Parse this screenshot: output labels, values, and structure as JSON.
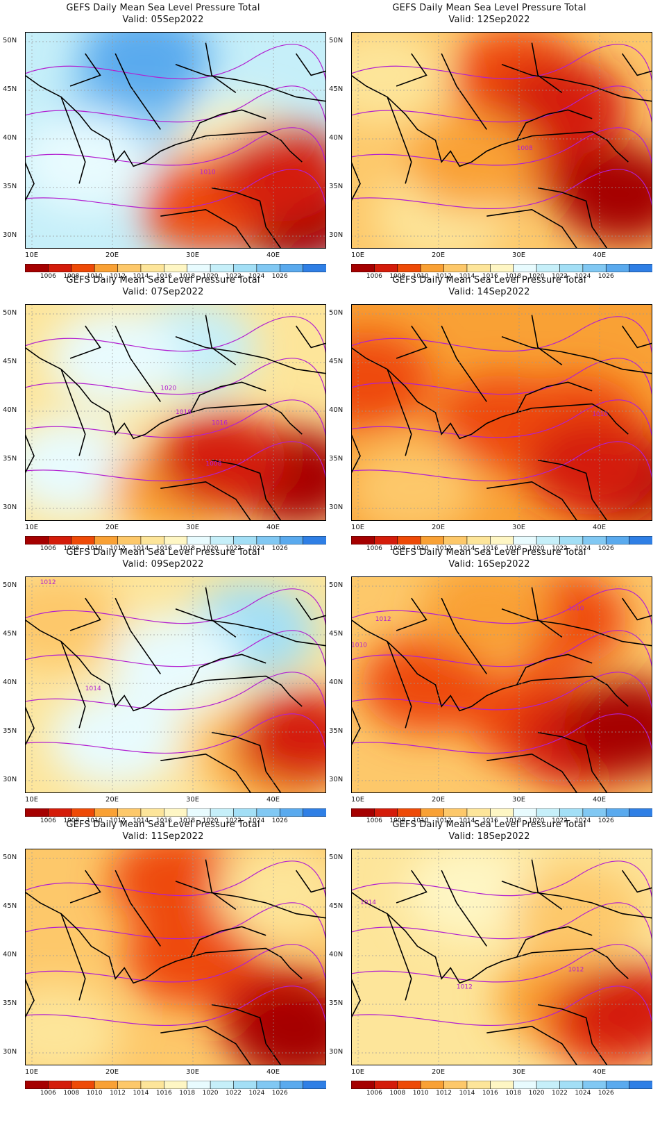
{
  "palette": {
    "colors": [
      "#a50000",
      "#d41c0a",
      "#ee4a07",
      "#f9a135",
      "#fdc86a",
      "#fde59a",
      "#fef6c4",
      "#e8fbfe",
      "#c6eff9",
      "#a3dff6",
      "#81c8f3",
      "#5aaaee",
      "#2f7fe5"
    ],
    "labels": [
      "1006",
      "1008",
      "1010",
      "1012",
      "1014",
      "1016",
      "1018",
      "1020",
      "1022",
      "1024",
      "1026"
    ],
    "contour_color": "#b21fd0"
  },
  "axes": {
    "lon_ticks": [
      "10E",
      "20E",
      "30E",
      "40E"
    ],
    "lat_ticks": [
      "50N",
      "45N",
      "40N",
      "35N",
      "30N"
    ]
  },
  "panels": [
    {
      "title": "GEFS Daily Mean Sea Level Pressure Total",
      "valid": "Valid: 05Sep2022",
      "bg": "#c6eff9",
      "labels": [
        {
          "text": "1010"
        }
      ],
      "fields": [
        [
          0.35,
          0.35,
          "#81c8f3"
        ],
        [
          0.4,
          0.12,
          "#5aaaee"
        ],
        [
          0.2,
          0.6,
          "#e8fbfe"
        ],
        [
          0.7,
          0.55,
          "#fef6c4"
        ],
        [
          0.65,
          0.75,
          "#f9a135"
        ],
        [
          0.9,
          0.85,
          "#a50000"
        ],
        [
          0.6,
          0.8,
          "#ee4a07"
        ],
        [
          0.85,
          0.65,
          "#d41c0a"
        ]
      ]
    },
    {
      "title": "GEFS Daily Mean Sea Level Pressure Total",
      "valid": "Valid: 12Sep2022",
      "bg": "#fdc86a",
      "labels": [
        {
          "text": "1008"
        }
      ],
      "fields": [
        [
          0.1,
          0.2,
          "#fde59a"
        ],
        [
          0.55,
          0.2,
          "#ee4a07"
        ],
        [
          0.7,
          0.35,
          "#d41c0a"
        ],
        [
          0.55,
          0.55,
          "#d41c0a"
        ],
        [
          0.9,
          0.75,
          "#a50000"
        ],
        [
          0.3,
          0.85,
          "#fde59a"
        ],
        [
          0.4,
          0.6,
          "#f9a135"
        ]
      ]
    },
    {
      "title": "GEFS Daily Mean Sea Level Pressure Total",
      "valid": "Valid: 07Sep2022",
      "bg": "#fde59a",
      "labels": [
        {
          "text": "1020"
        },
        {
          "text": "1018"
        },
        {
          "text": "1016"
        },
        {
          "text": "1008"
        }
      ],
      "fields": [
        [
          0.55,
          0.2,
          "#c6eff9"
        ],
        [
          0.3,
          0.25,
          "#e8fbfe"
        ],
        [
          0.15,
          0.75,
          "#e8fbfe"
        ],
        [
          0.5,
          0.85,
          "#f9a135"
        ],
        [
          0.7,
          0.75,
          "#ee4a07"
        ],
        [
          0.9,
          0.8,
          "#a50000"
        ],
        [
          0.65,
          0.72,
          "#d41c0a"
        ]
      ]
    },
    {
      "title": "GEFS Daily Mean Sea Level Pressure Total",
      "valid": "Valid: 14Sep2022",
      "bg": "#f9a135",
      "labels": [
        {
          "text": "1010"
        }
      ],
      "fields": [
        [
          0.05,
          0.35,
          "#ee4a07"
        ],
        [
          0.5,
          0.55,
          "#ee4a07"
        ],
        [
          0.75,
          0.55,
          "#ee4a07"
        ],
        [
          0.9,
          0.8,
          "#a50000"
        ],
        [
          0.8,
          0.75,
          "#d41c0a"
        ],
        [
          0.2,
          0.85,
          "#fdc86a"
        ]
      ]
    },
    {
      "title": "GEFS Daily Mean Sea Level Pressure Total",
      "valid": "Valid: 09Sep2022",
      "bg": "#fde59a",
      "labels": [
        {
          "text": "1012"
        },
        {
          "text": "1014"
        }
      ],
      "fields": [
        [
          0.75,
          0.25,
          "#a3dff6"
        ],
        [
          0.5,
          0.4,
          "#e8fbfe"
        ],
        [
          0.3,
          0.75,
          "#e8fbfe"
        ],
        [
          0.1,
          0.2,
          "#fdc86a"
        ],
        [
          0.75,
          0.8,
          "#fdc86a"
        ],
        [
          0.85,
          0.85,
          "#f9a135"
        ],
        [
          0.92,
          0.75,
          "#d41c0a"
        ]
      ]
    },
    {
      "title": "GEFS Daily Mean Sea Level Pressure Total",
      "valid": "Valid: 16Sep2022",
      "bg": "#fdc86a",
      "labels": [
        {
          "text": "1012"
        },
        {
          "text": "1010"
        },
        {
          "text": "1010"
        }
      ],
      "fields": [
        [
          0.25,
          0.5,
          "#ee4a07"
        ],
        [
          0.6,
          0.65,
          "#ee4a07"
        ],
        [
          0.75,
          0.75,
          "#d41c0a"
        ],
        [
          0.92,
          0.7,
          "#a50000"
        ],
        [
          0.7,
          0.2,
          "#ee4a07"
        ],
        [
          0.45,
          0.15,
          "#f9a135"
        ]
      ]
    },
    {
      "title": "GEFS Daily Mean Sea Level Pressure Total",
      "valid": "Valid: 11Sep2022",
      "bg": "#fdc86a",
      "labels": [],
      "fields": [
        [
          0.5,
          0.15,
          "#ee4a07"
        ],
        [
          0.55,
          0.5,
          "#ee4a07"
        ],
        [
          0.85,
          0.75,
          "#d41c0a"
        ],
        [
          0.9,
          0.85,
          "#a50000"
        ],
        [
          0.1,
          0.85,
          "#fde59a"
        ],
        [
          0.85,
          0.2,
          "#fde59a"
        ]
      ]
    },
    {
      "title": "GEFS Daily Mean Sea Level Pressure Total",
      "valid": "Valid: 18Sep2022",
      "bg": "#fde59a",
      "labels": [
        {
          "text": "1014"
        },
        {
          "text": "1012"
        },
        {
          "text": "1012"
        }
      ],
      "fields": [
        [
          0.4,
          0.2,
          "#fef6c4"
        ],
        [
          0.7,
          0.7,
          "#f9a135"
        ],
        [
          0.85,
          0.8,
          "#ee4a07"
        ],
        [
          0.92,
          0.75,
          "#d41c0a"
        ],
        [
          0.75,
          0.3,
          "#fdc86a"
        ]
      ]
    }
  ]
}
